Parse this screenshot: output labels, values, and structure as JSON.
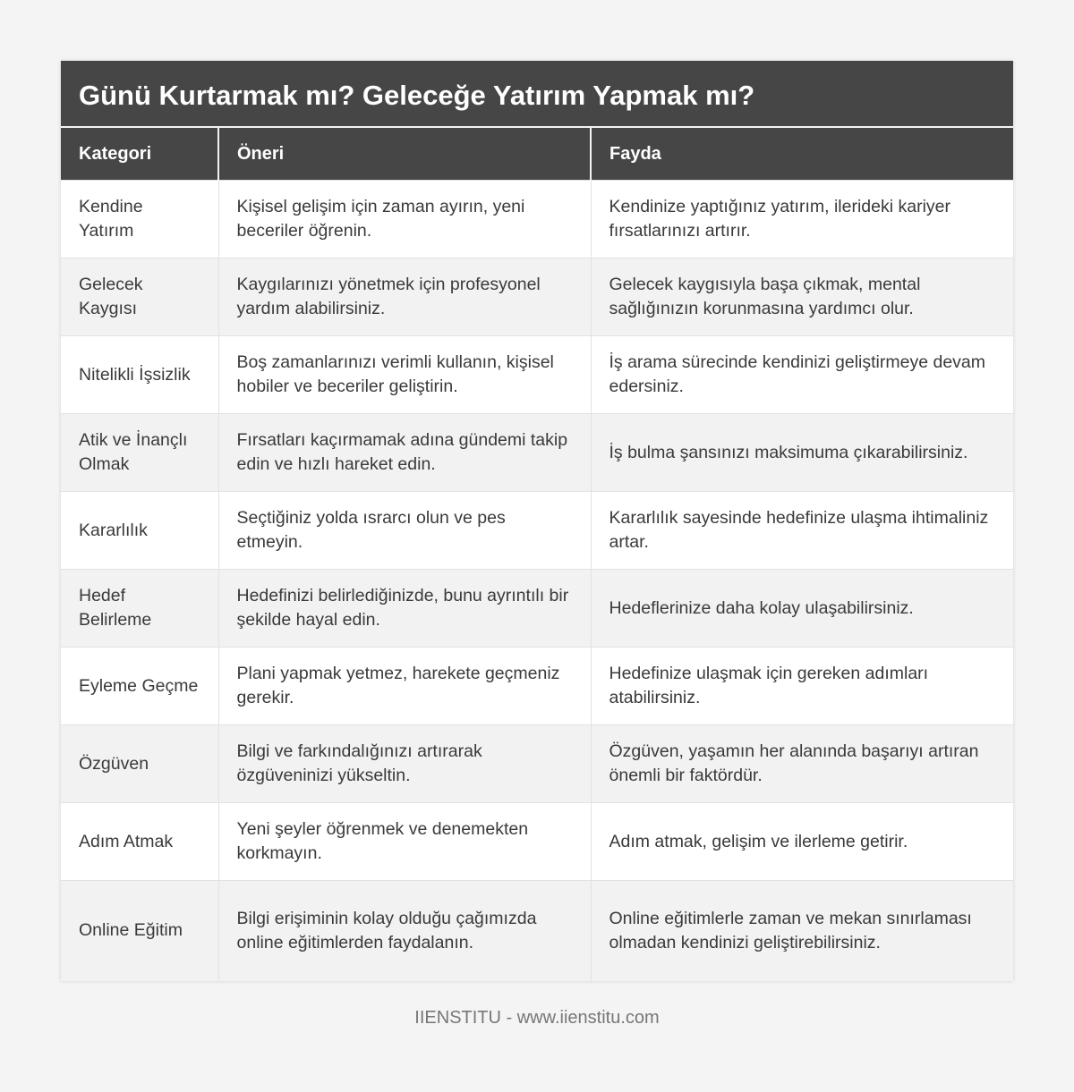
{
  "title": "Günü Kurtarmak mı? Geleceğe Yatırım Yapmak mı?",
  "headers": [
    "Kategori",
    "Öneri",
    "Fayda"
  ],
  "rows": [
    [
      "Kendine Yatırım",
      "Kişisel gelişim için zaman ayırın, yeni beceriler öğrenin.",
      "Kendinize yaptığınız yatırım, ilerideki kariyer fırsatlarınızı artırır."
    ],
    [
      "Gelecek Kaygısı",
      "Kaygılarınızı yönetmek için profesyonel yardım alabilirsiniz.",
      "Gelecek kaygısıyla başa çıkmak, mental sağlığınızın korunmasına yardımcı olur."
    ],
    [
      "Nitelikli İşsizlik",
      "Boş zamanlarınızı verimli kullanın, kişisel hobiler ve beceriler geliştirin.",
      "İş arama sürecinde kendinizi geliştirmeye devam edersiniz."
    ],
    [
      "Atik ve İnançlı Olmak",
      "Fırsatları kaçırmamak adına gündemi takip edin ve hızlı hareket edin.",
      "İş bulma şansınızı maksimuma çıkarabilirsiniz."
    ],
    [
      "Kararlılık",
      "Seçtiğiniz yolda ısrarcı olun ve pes etmeyin.",
      "Kararlılık sayesinde hedefinize ulaşma ihtimaliniz artar."
    ],
    [
      "Hedef Belirleme",
      "Hedefinizi belirlediğinizde, bunu ayrıntılı bir şekilde hayal edin.",
      "Hedeflerinize daha kolay ulaşabilirsiniz."
    ],
    [
      "Eyleme Geçme",
      "Plani yapmak yetmez, harekete geçmeniz gerekir.",
      "Hedefinize ulaşmak için gereken adımları atabilirsiniz."
    ],
    [
      "Özgüven",
      "Bilgi ve farkındalığınızı artırarak özgüveninizi yükseltin.",
      "Özgüven, yaşamın her alanında başarıyı artıran önemli bir faktördür."
    ],
    [
      "Adım Atmak",
      "Yeni şeyler öğrenmek ve denemekten korkmayın.",
      "Adım atmak, gelişim ve ilerleme getirir."
    ],
    [
      "Online Eğitim",
      "Bilgi erişiminin kolay olduğu çağımızda online eğitimlerden faydalanın.",
      "Online eğitimlerle zaman ve mekan sınırlaması olmadan kendinizi geliştirebilirsiniz."
    ]
  ],
  "footer": "IIENSTITU - www.iienstitu.com"
}
